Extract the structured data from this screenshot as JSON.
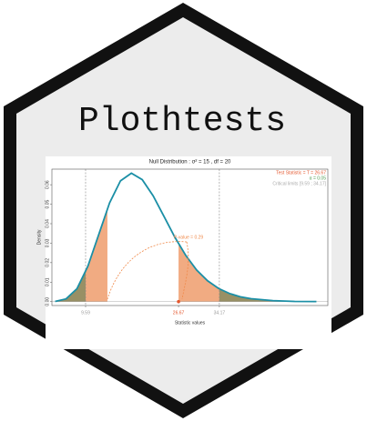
{
  "title": "Plothtests",
  "chart_data": {
    "type": "line",
    "title": "Null Distribution :  σ² = 15 ,   df = 20",
    "xlabel": "Statistic values",
    "ylabel": "Density",
    "x": [
      4,
      6,
      8,
      10,
      12,
      14,
      16,
      18,
      20,
      22,
      24,
      26,
      28,
      30,
      32,
      34,
      36,
      38,
      40,
      44,
      48,
      52
    ],
    "values": [
      0.0001,
      0.0014,
      0.0066,
      0.0181,
      0.0344,
      0.0507,
      0.062,
      0.0659,
      0.0626,
      0.0543,
      0.0437,
      0.033,
      0.0237,
      0.0162,
      0.0107,
      0.0068,
      0.0042,
      0.0025,
      0.0015,
      0.0005,
      0.0001,
      4e-05
    ],
    "color": "#1b8fa6",
    "xlim": [
      3.4,
      54.1
    ],
    "ylim": [
      -0.002,
      0.068
    ],
    "xticks": [
      9.59,
      26.67,
      34.17
    ],
    "yticks": [
      {
        "value": 0,
        "label": "0.00"
      },
      {
        "value": 0.01,
        "label": "0.01"
      },
      {
        "value": 0.02,
        "label": "0.02"
      },
      {
        "value": 0.03,
        "label": "0.03"
      },
      {
        "value": 0.04,
        "label": "0.04"
      },
      {
        "value": 0.05,
        "label": "0.05"
      },
      {
        "value": 0.06,
        "label": "0.06"
      }
    ],
    "test_statistic": 26.67,
    "critical_limits": [
      9.59,
      34.17
    ],
    "p_value_tails": [
      13.6,
      26.67
    ],
    "p_value_color": "#f0a274",
    "critical_color": "#4e7a4e",
    "legend": [
      "Test Statistic = T = 26.67",
      "α = 0.05",
      "Critical limits [9.59 ; 34.17]"
    ],
    "annotation": "P-value = 0.29"
  }
}
